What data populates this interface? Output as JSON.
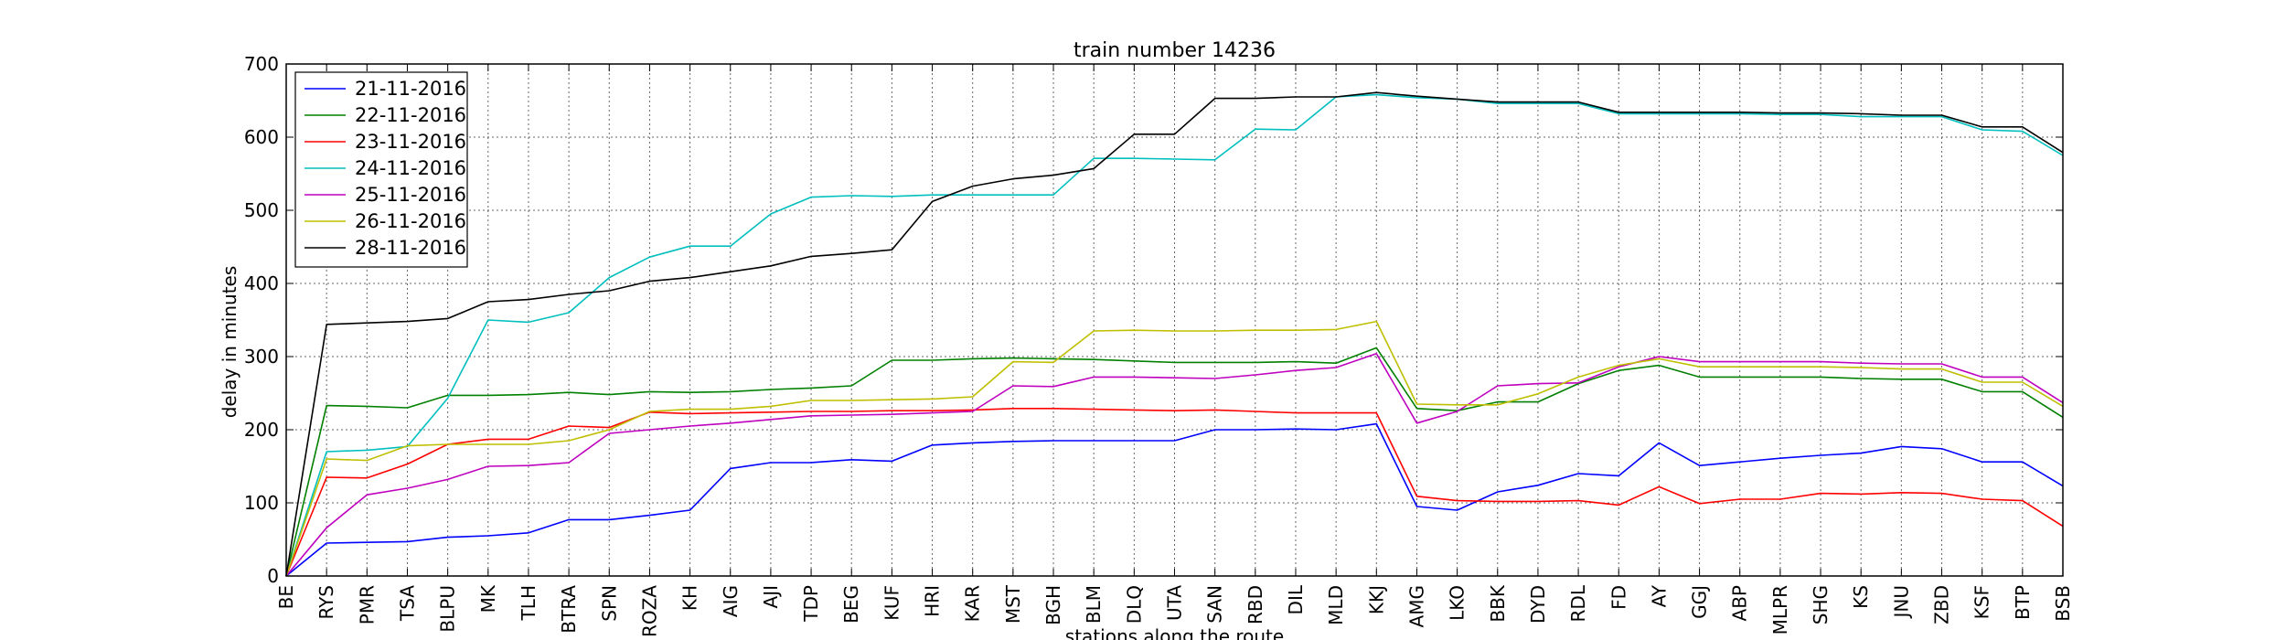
{
  "chart_data": {
    "type": "line",
    "title": "train number 14236",
    "xlabel": "stations along the route",
    "ylabel": "delay in minutes",
    "ylim": [
      0,
      700
    ],
    "yticks": [
      0,
      100,
      200,
      300,
      400,
      500,
      600,
      700
    ],
    "grid": true,
    "legend_position": "top-left",
    "categories": [
      "BE",
      "RYS",
      "PMR",
      "TSA",
      "BLPU",
      "MK",
      "TLH",
      "BTRA",
      "SPN",
      "ROZA",
      "KH",
      "AIG",
      "AJI",
      "TDP",
      "BEG",
      "KUF",
      "HRI",
      "KAR",
      "MST",
      "BGH",
      "BLM",
      "DLQ",
      "UTA",
      "SAN",
      "RBD",
      "DIL",
      "MLD",
      "KKJ",
      "AMG",
      "LKO",
      "BBK",
      "DYD",
      "RDL",
      "FD",
      "AY",
      "GGJ",
      "ABP",
      "MLPR",
      "SHG",
      "KS",
      "JNU",
      "ZBD",
      "KSF",
      "BTP",
      "BSB"
    ],
    "series": [
      {
        "name": "21-11-2016",
        "color": "#0000ff",
        "values": [
          0,
          45,
          46,
          47,
          53,
          55,
          59,
          77,
          77,
          83,
          90,
          147,
          155,
          155,
          159,
          157,
          179,
          182,
          184,
          185,
          185,
          185,
          185,
          200,
          200,
          201,
          200,
          208,
          95,
          90,
          115,
          124,
          140,
          137,
          182,
          151,
          156,
          161,
          165,
          168,
          177,
          174,
          156,
          156,
          123
        ]
      },
      {
        "name": "22-11-2016",
        "color": "#008000",
        "values": [
          0,
          233,
          232,
          230,
          247,
          247,
          248,
          251,
          248,
          252,
          251,
          252,
          255,
          257,
          260,
          295,
          295,
          297,
          298,
          297,
          296,
          294,
          292,
          292,
          292,
          293,
          291,
          312,
          229,
          226,
          238,
          238,
          263,
          281,
          288,
          272,
          272,
          272,
          272,
          270,
          269,
          269,
          252,
          252,
          217
        ]
      },
      {
        "name": "23-11-2016",
        "color": "#ff0000",
        "values": [
          0,
          135,
          134,
          153,
          180,
          187,
          187,
          205,
          203,
          224,
          222,
          223,
          224,
          225,
          225,
          226,
          226,
          227,
          229,
          229,
          228,
          227,
          226,
          227,
          225,
          223,
          223,
          223,
          109,
          103,
          102,
          102,
          103,
          97,
          122,
          99,
          105,
          105,
          113,
          112,
          114,
          113,
          105,
          103,
          68
        ]
      },
      {
        "name": "24-11-2016",
        "color": "#00bfbf",
        "values": [
          0,
          170,
          172,
          177,
          243,
          350,
          347,
          360,
          408,
          436,
          451,
          451,
          495,
          518,
          520,
          519,
          521,
          521,
          521,
          521,
          571,
          571,
          570,
          569,
          611,
          610,
          655,
          658,
          654,
          652,
          646,
          646,
          646,
          632,
          632,
          632,
          632,
          631,
          631,
          628,
          628,
          628,
          610,
          608,
          575
        ]
      },
      {
        "name": "25-11-2016",
        "color": "#bf00bf",
        "values": [
          0,
          66,
          111,
          120,
          132,
          150,
          151,
          155,
          195,
          200,
          205,
          209,
          214,
          219,
          220,
          221,
          223,
          225,
          260,
          259,
          272,
          272,
          271,
          270,
          275,
          281,
          285,
          304,
          209,
          225,
          260,
          263,
          264,
          286,
          300,
          293,
          293,
          293,
          293,
          291,
          290,
          290,
          272,
          272,
          237
        ]
      },
      {
        "name": "26-11-2016",
        "color": "#bfbf00",
        "values": [
          0,
          160,
          158,
          178,
          180,
          180,
          180,
          185,
          200,
          225,
          228,
          228,
          232,
          240,
          240,
          241,
          242,
          245,
          293,
          292,
          335,
          336,
          335,
          335,
          336,
          336,
          337,
          348,
          235,
          234,
          234,
          249,
          272,
          288,
          297,
          286,
          286,
          286,
          286,
          285,
          283,
          283,
          265,
          265,
          232
        ]
      },
      {
        "name": "28-11-2016",
        "color": "#000000",
        "values": [
          0,
          344,
          346,
          348,
          352,
          375,
          378,
          385,
          390,
          403,
          408,
          416,
          424,
          437,
          441,
          446,
          512,
          533,
          543,
          548,
          557,
          604,
          604,
          653,
          653,
          655,
          655,
          661,
          656,
          652,
          648,
          648,
          648,
          634,
          634,
          634,
          634,
          633,
          633,
          632,
          630,
          630,
          614,
          614,
          579
        ]
      }
    ]
  }
}
